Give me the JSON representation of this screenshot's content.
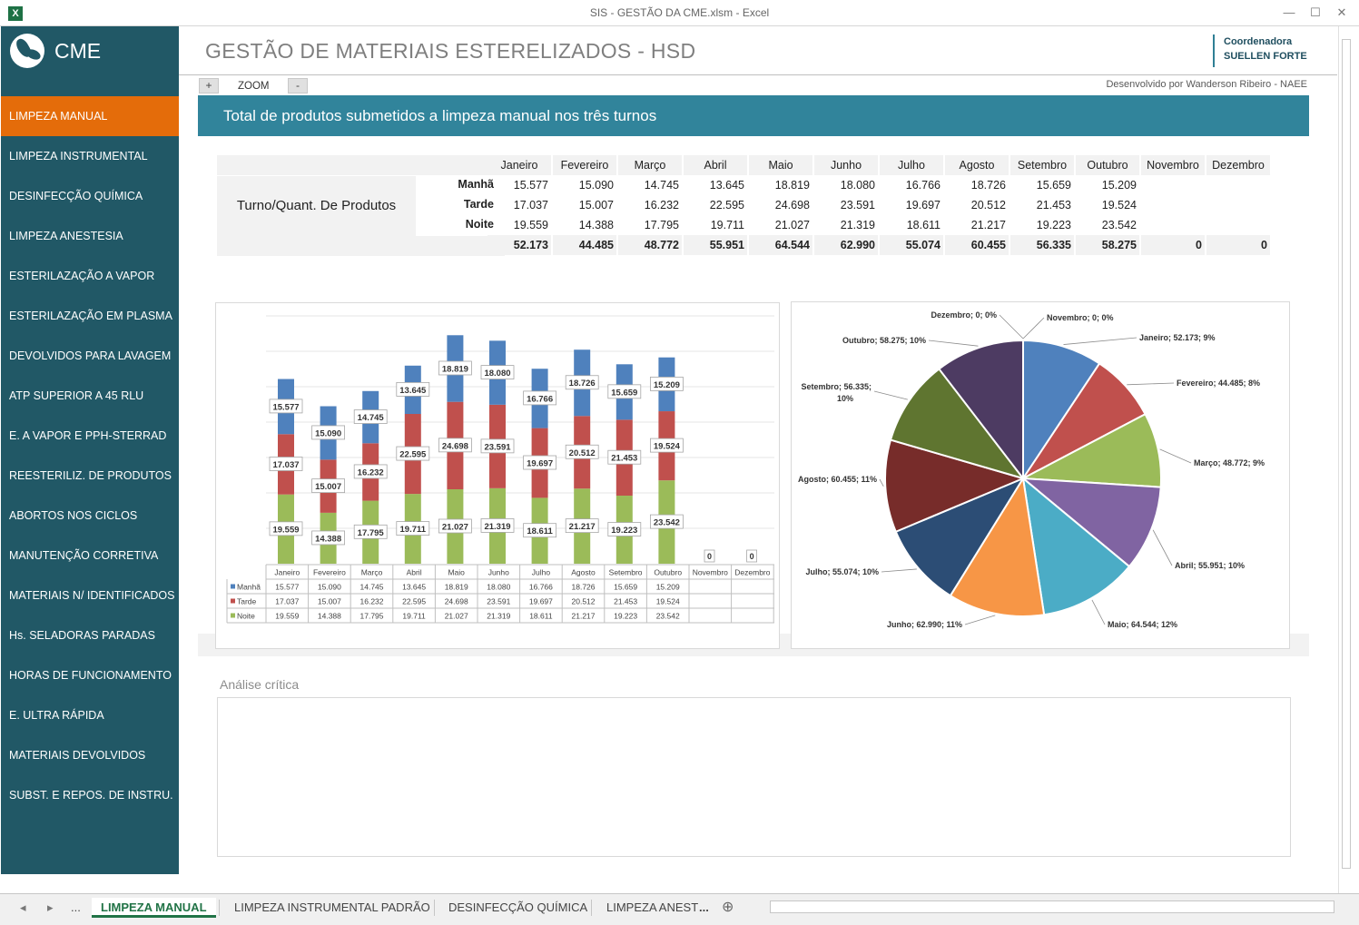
{
  "window": {
    "title": "SIS - GESTÃO DA CME.xlsm - Excel",
    "app_icon": "X",
    "minimize": "—",
    "maximize": "☐",
    "close": "✕"
  },
  "sidebar": {
    "logo_text": "CME",
    "items": [
      {
        "label": "LIMPEZA MANUAL",
        "active": true
      },
      {
        "label": "LIMPEZA INSTRUMENTAL"
      },
      {
        "label": "DESINFECÇÃO QUÍMICA"
      },
      {
        "label": "LIMPEZA ANESTESIA"
      },
      {
        "label": "ESTERILAZAÇÃO A VAPOR"
      },
      {
        "label": "ESTERILAZAÇÃO EM PLASMA"
      },
      {
        "label": "DEVOLVIDOS PARA LAVAGEM"
      },
      {
        "label": "ATP SUPERIOR A 45 RLU"
      },
      {
        "label": "E. A VAPOR E PPH-STERRAD"
      },
      {
        "label": "REESTERILIZ. DE PRODUTOS"
      },
      {
        "label": "ABORTOS NOS CICLOS"
      },
      {
        "label": "MANUTENÇÃO CORRETIVA"
      },
      {
        "label": "MATERIAIS N/ IDENTIFICADOS"
      },
      {
        "label": "Hs. SELADORAS PARADAS"
      },
      {
        "label": "HORAS DE FUNCIONAMENTO"
      },
      {
        "label": "E. ULTRA RÁPIDA"
      },
      {
        "label": "MATERIAIS DEVOLVIDOS"
      },
      {
        "label": "SUBST. E REPOS. DE INSTRU."
      }
    ]
  },
  "header": {
    "title": "GESTÃO DE MATERIAIS ESTERELIZADOS - HSD",
    "coord_role": "Coordenadora",
    "coord_name": "SUELLEN FORTE",
    "zoom_plus": "+",
    "zoom_label": "ZOOM",
    "zoom_minus": "-",
    "developer": "Desenvolvido por Wanderson Ribeiro - NAEE"
  },
  "banner": "Total de produtos submetidos a limpeza manual nos três turnos",
  "table": {
    "row_label": "Turno/Quant. De Produtos",
    "months": [
      "Janeiro",
      "Fevereiro",
      "Março",
      "Abril",
      "Maio",
      "Junho",
      "Julho",
      "Agosto",
      "Setembro",
      "Outubro",
      "Novembro",
      "Dezembro"
    ],
    "rows": [
      {
        "shift": "Manhã",
        "values": [
          "15.577",
          "15.090",
          "14.745",
          "13.645",
          "18.819",
          "18.080",
          "16.766",
          "18.726",
          "15.659",
          "15.209",
          "",
          ""
        ]
      },
      {
        "shift": "Tarde",
        "values": [
          "17.037",
          "15.007",
          "16.232",
          "22.595",
          "24.698",
          "23.591",
          "19.697",
          "20.512",
          "21.453",
          "19.524",
          "",
          ""
        ]
      },
      {
        "shift": "Noite",
        "values": [
          "19.559",
          "14.388",
          "17.795",
          "19.711",
          "21.027",
          "21.319",
          "18.611",
          "21.217",
          "19.223",
          "23.542",
          "",
          ""
        ]
      }
    ],
    "totals": [
      "52.173",
      "44.485",
      "48.772",
      "55.951",
      "64.544",
      "62.990",
      "55.074",
      "60.455",
      "56.335",
      "58.275",
      "0",
      "0"
    ]
  },
  "chart_data": [
    {
      "type": "bar",
      "stacked": true,
      "categories": [
        "Janeiro",
        "Fevereiro",
        "Março",
        "Abril",
        "Maio",
        "Junho",
        "Julho",
        "Agosto",
        "Setembro",
        "Outubro",
        "Novembro",
        "Dezembro"
      ],
      "series": [
        {
          "name": "Manhã",
          "color": "#4f81bd",
          "values": [
            15577,
            15090,
            14745,
            13645,
            18819,
            18080,
            16766,
            18726,
            15659,
            15209,
            0,
            0
          ],
          "labels": [
            "15.577",
            "15.090",
            "14.745",
            "13.645",
            "18.819",
            "18.080",
            "16.766",
            "18.726",
            "15.659",
            "15.209",
            "",
            ""
          ]
        },
        {
          "name": "Tarde",
          "color": "#c0504d",
          "values": [
            17037,
            15007,
            16232,
            22595,
            24698,
            23591,
            19697,
            20512,
            21453,
            19524,
            0,
            0
          ],
          "labels": [
            "17.037",
            "15.007",
            "16.232",
            "22.595",
            "24.698",
            "23.591",
            "19.697",
            "20.512",
            "21.453",
            "19.524",
            "",
            ""
          ]
        },
        {
          "name": "Noite",
          "color": "#9bbb59",
          "values": [
            19559,
            14388,
            17795,
            19711,
            21027,
            21319,
            18611,
            21217,
            19223,
            23542,
            0,
            0
          ],
          "labels": [
            "19.559",
            "14.388",
            "17.795",
            "19.711",
            "21.027",
            "21.319",
            "18.611",
            "21.217",
            "19.223",
            "23.542",
            "",
            ""
          ]
        }
      ],
      "total_labels": [
        "",
        "",
        "",
        "",
        "",
        "",
        "",
        "",
        "",
        "",
        "0",
        "0"
      ],
      "ylim": [
        0,
        70000
      ],
      "grid": true,
      "data_table": true
    },
    {
      "type": "pie",
      "slices": [
        {
          "label": "Janeiro; 52.173; 9%",
          "value": 52173,
          "color": "#4f81bd"
        },
        {
          "label": "Fevereiro; 44.485; 8%",
          "value": 44485,
          "color": "#c0504d"
        },
        {
          "label": "Março; 48.772; 9%",
          "value": 48772,
          "color": "#9bbb59"
        },
        {
          "label": "Abril; 55.951; 10%",
          "value": 55951,
          "color": "#8064a2"
        },
        {
          "label": "Maio; 64.544; 12%",
          "value": 64544,
          "color": "#4bacc6"
        },
        {
          "label": "Junho; 62.990; 11%",
          "value": 62990,
          "color": "#f79646"
        },
        {
          "label": "Julho; 55.074; 10%",
          "value": 55074,
          "color": "#2c4d75"
        },
        {
          "label": "Agosto; 60.455; 11%",
          "value": 60455,
          "color": "#772c2a"
        },
        {
          "label": "Setembro; 56.335; 10%",
          "value": 56335,
          "color": "#5f7530"
        },
        {
          "label": "Outubro; 58.275; 10%",
          "value": 58275,
          "color": "#4d3b62"
        },
        {
          "label": "Novembro; 0; 0%",
          "value": 0,
          "color": "#276a7c"
        },
        {
          "label": "Dezembro; 0; 0%",
          "value": 0,
          "color": "#b65708"
        }
      ]
    }
  ],
  "analysis": {
    "label": "Análise crítica",
    "text": ""
  },
  "sheet_tabs": {
    "nav_prev": "◂",
    "nav_next": "▸",
    "more": "...",
    "tabs": [
      "LIMPEZA MANUAL",
      "LIMPEZA INSTRUMENTAL PADRÃO",
      "DESINFECÇÃO QUÍMICA",
      "LIMPEZA ANEST"
    ],
    "overflow": "...",
    "add": "⊕"
  }
}
